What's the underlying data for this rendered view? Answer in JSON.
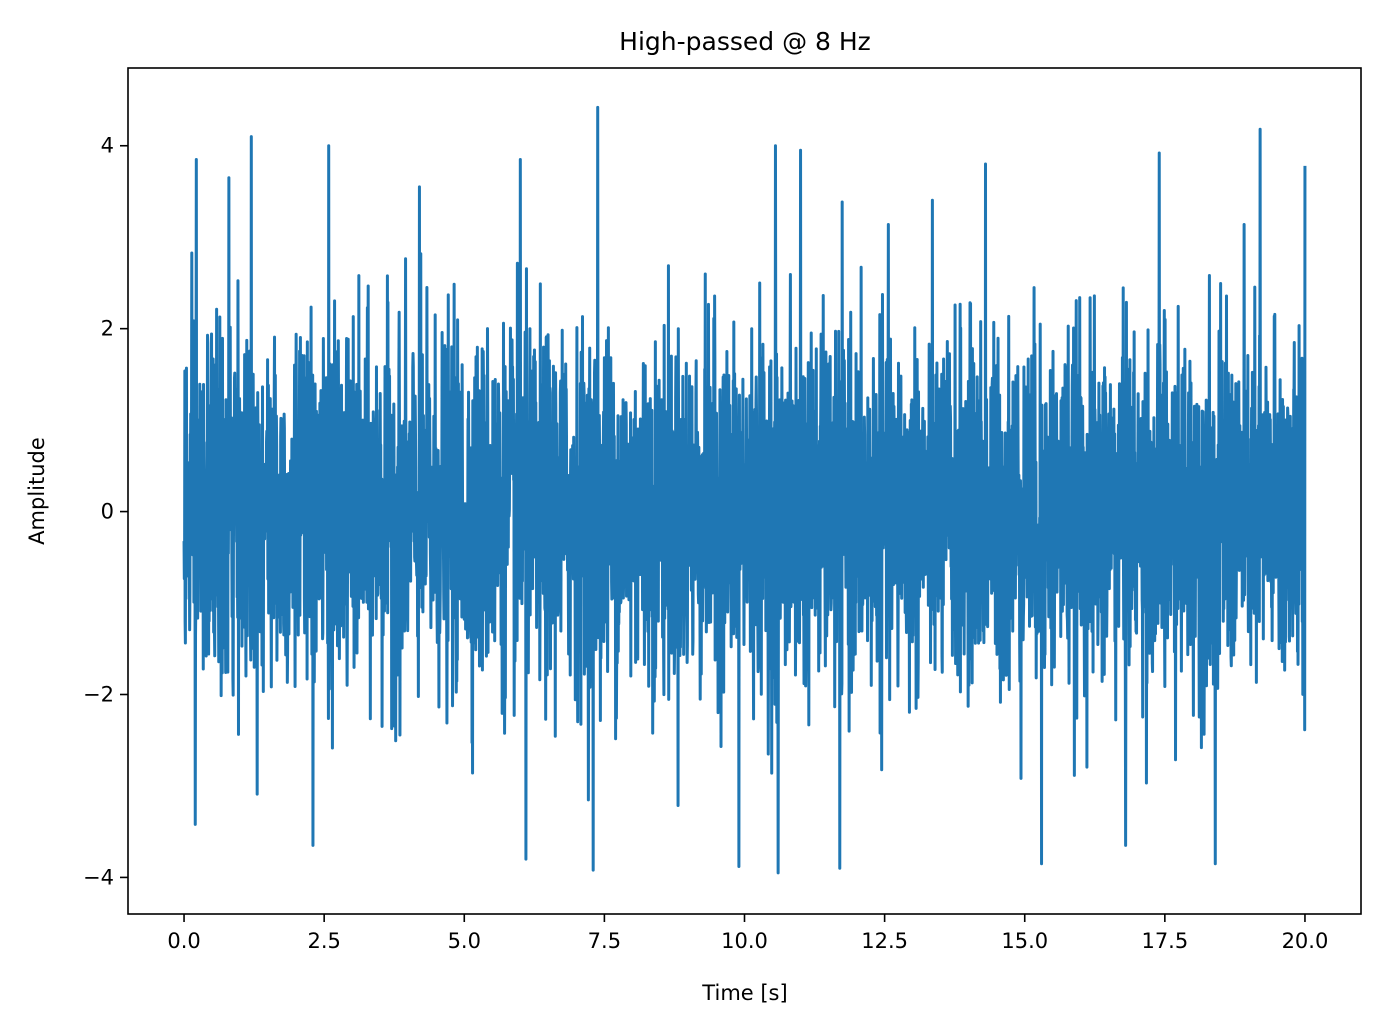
{
  "chart_data": {
    "type": "line",
    "title": "High-passed @ 8 Hz",
    "xlabel": "Time [s]",
    "ylabel": "Amplitude",
    "xlim": [
      -1.0,
      21.0
    ],
    "ylim": [
      -4.4,
      4.85
    ],
    "xticks": [
      0.0,
      2.5,
      5.0,
      7.5,
      10.0,
      12.5,
      15.0,
      17.5,
      20.0
    ],
    "xtick_labels": [
      "0.0",
      "2.5",
      "5.0",
      "7.5",
      "10.0",
      "12.5",
      "15.0",
      "17.5",
      "20.0"
    ],
    "yticks": [
      -4,
      -2,
      0,
      2,
      4
    ],
    "ytick_labels": [
      "−4",
      "−2",
      "0",
      "2",
      "4"
    ],
    "grid": false,
    "legend": "none",
    "series": [
      {
        "color": "#1f77b4",
        "x_range": [
          0.0,
          20.0
        ],
        "envelope_peak_max": 4.42,
        "envelope_peak_min": -3.95,
        "dense_band": [
          -2.3,
          2.3
        ],
        "peaks_high": [
          [
            0.22,
            3.85
          ],
          [
            0.8,
            3.65
          ],
          [
            1.2,
            4.1
          ],
          [
            2.58,
            4.0
          ],
          [
            4.2,
            3.55
          ],
          [
            6.0,
            3.85
          ],
          [
            7.38,
            4.42
          ],
          [
            10.55,
            4.0
          ],
          [
            11.0,
            3.95
          ],
          [
            14.3,
            3.8
          ],
          [
            17.4,
            3.92
          ],
          [
            19.2,
            4.18
          ],
          [
            20.0,
            3.78
          ]
        ],
        "peaks_low": [
          [
            0.2,
            -3.42
          ],
          [
            2.3,
            -3.65
          ],
          [
            6.1,
            -3.8
          ],
          [
            7.3,
            -3.92
          ],
          [
            9.9,
            -3.88
          ],
          [
            10.6,
            -3.95
          ],
          [
            11.7,
            -3.9
          ],
          [
            15.3,
            -3.85
          ],
          [
            18.4,
            -3.85
          ],
          [
            16.8,
            -3.65
          ]
        ]
      }
    ]
  }
}
